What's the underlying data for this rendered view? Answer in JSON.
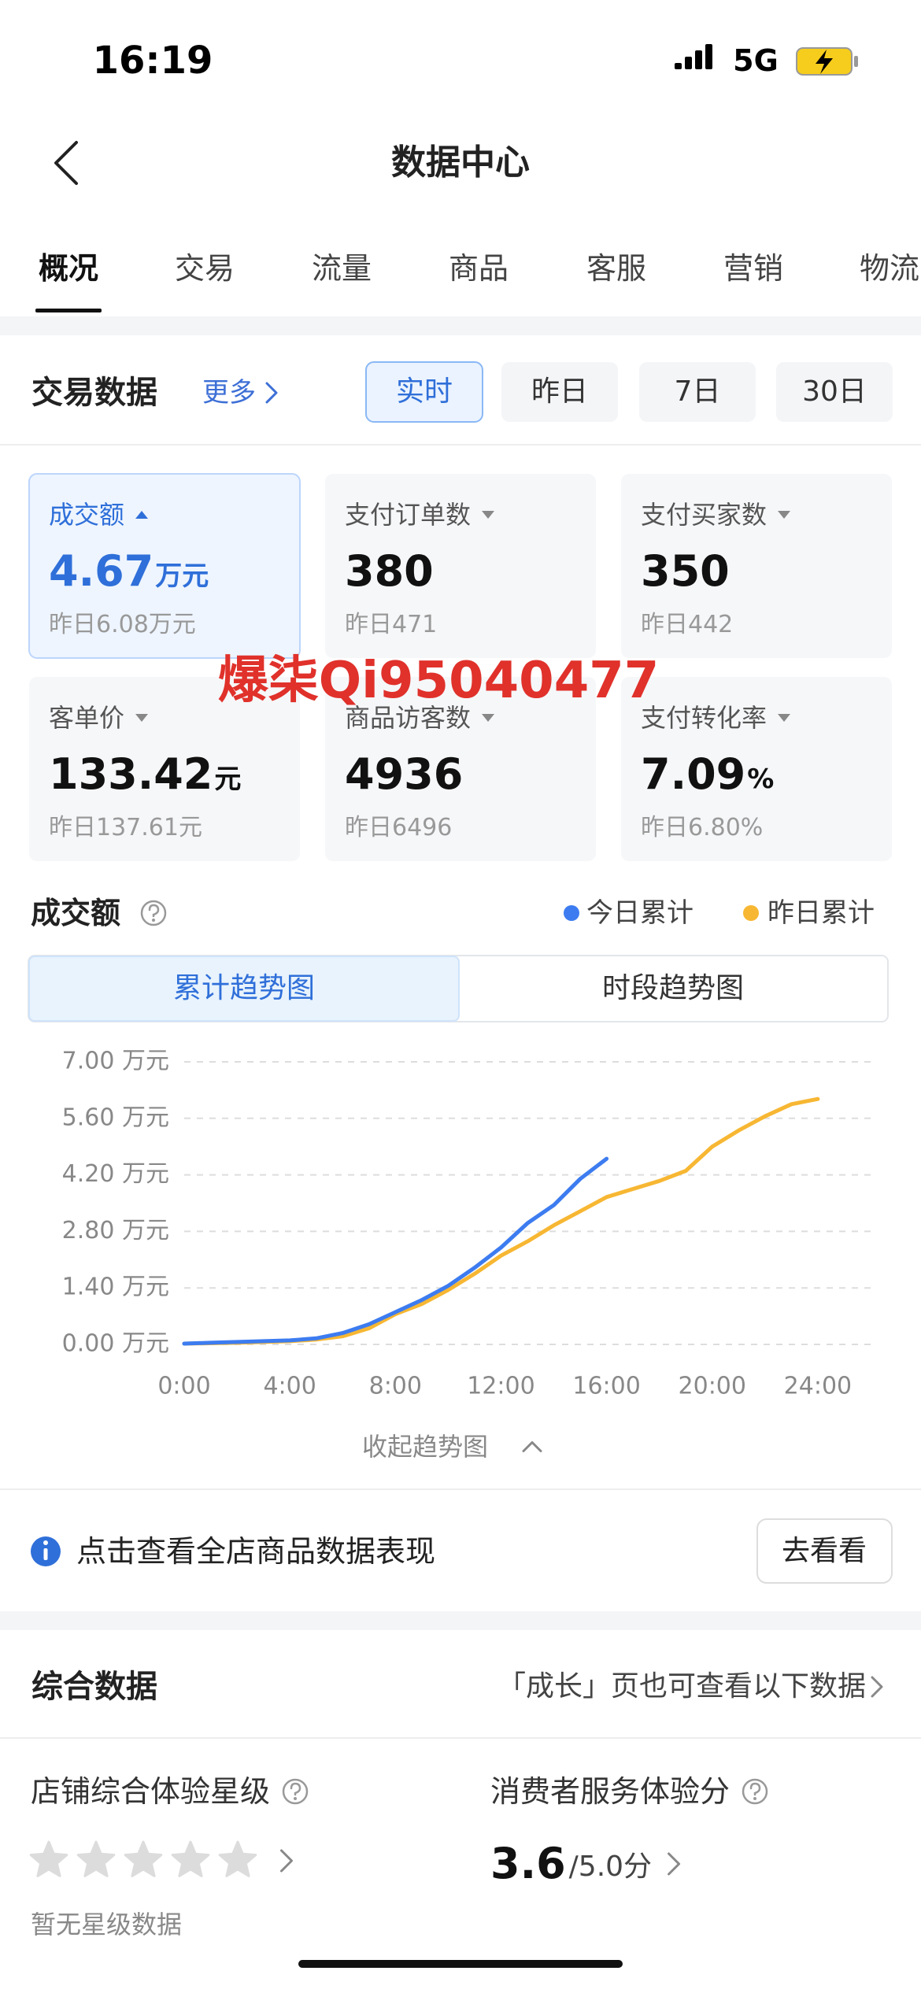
{
  "status_bar": {
    "time": "16:19",
    "network": "5G"
  },
  "nav": {
    "title": "数据中心"
  },
  "tabs": [
    "概况",
    "交易",
    "流量",
    "商品",
    "客服",
    "营销",
    "物流"
  ],
  "trade": {
    "title": "交易数据",
    "more": "更多",
    "periods": [
      "实时",
      "昨日",
      "7日",
      "30日"
    ],
    "metrics": [
      {
        "label": "成交额",
        "value": "4.67",
        "unit": "万元",
        "compare": "昨日6.08万元"
      },
      {
        "label": "支付订单数",
        "value": "380",
        "compare": "昨日471"
      },
      {
        "label": "支付买家数",
        "value": "350",
        "compare": "昨日442"
      },
      {
        "label": "客单价",
        "value": "133.42",
        "unit": "元",
        "compare": "昨日137.61元"
      },
      {
        "label": "商品访客数",
        "value": "4936",
        "compare": "昨日6496"
      },
      {
        "label": "支付转化率",
        "value": "7.09",
        "unit": "%",
        "compare": "昨日6.80%"
      }
    ]
  },
  "watermark": "爆柒Qi95040477",
  "chart_data": {
    "type": "line",
    "title": "成交额",
    "views": [
      "累计趋势图",
      "时段趋势图"
    ],
    "x": [
      0,
      1,
      2,
      3,
      4,
      5,
      6,
      7,
      8,
      9,
      10,
      11,
      12,
      13,
      14,
      15,
      16,
      17,
      18,
      19,
      20,
      21,
      22,
      23,
      24
    ],
    "series": [
      {
        "name": "今日累计",
        "color": "#3d7cf0",
        "values": [
          0.02,
          0.04,
          0.06,
          0.08,
          0.1,
          0.15,
          0.28,
          0.5,
          0.8,
          1.1,
          1.45,
          1.9,
          2.4,
          3.0,
          3.45,
          4.1,
          4.6,
          null,
          null,
          null,
          null,
          null,
          null,
          null,
          null
        ]
      },
      {
        "name": "昨日累计",
        "color": "#f7b733",
        "values": [
          0.02,
          0.03,
          0.04,
          0.06,
          0.08,
          0.12,
          0.2,
          0.4,
          0.75,
          1.0,
          1.35,
          1.75,
          2.2,
          2.55,
          2.95,
          3.3,
          3.65,
          3.85,
          4.05,
          4.3,
          4.9,
          5.3,
          5.65,
          5.95,
          6.08
        ]
      }
    ],
    "xlim": [
      0,
      26
    ],
    "ylim": [
      0,
      7
    ],
    "xticks": [
      {
        "value": 0,
        "label": "0:00"
      },
      {
        "value": 4,
        "label": "4:00"
      },
      {
        "value": 8,
        "label": "8:00"
      },
      {
        "value": 12,
        "label": "12:00"
      },
      {
        "value": 16,
        "label": "16:00"
      },
      {
        "value": 20,
        "label": "20:00"
      },
      {
        "value": 24,
        "label": "24:00"
      }
    ],
    "yticks": [
      {
        "value": 0,
        "label": "0.00 万元"
      },
      {
        "value": 1.4,
        "label": "1.40 万元"
      },
      {
        "value": 2.8,
        "label": "2.80 万元"
      },
      {
        "value": 4.2,
        "label": "4.20 万元"
      },
      {
        "value": 5.6,
        "label": "5.60 万元"
      },
      {
        "value": 7,
        "label": "7.00 万元"
      }
    ],
    "grid": true
  },
  "collapse": "收起趋势图",
  "info": {
    "text": "点击查看全店商品数据表现",
    "button": "去看看"
  },
  "summary": {
    "title": "综合数据",
    "hint": "「成长」页也可查看以下数据",
    "star_label": "店铺综合体验星级",
    "star_empty": "暂无星级数据",
    "service_label": "消费者服务体验分",
    "score": "3.6",
    "score_scale": "/5.0分"
  }
}
